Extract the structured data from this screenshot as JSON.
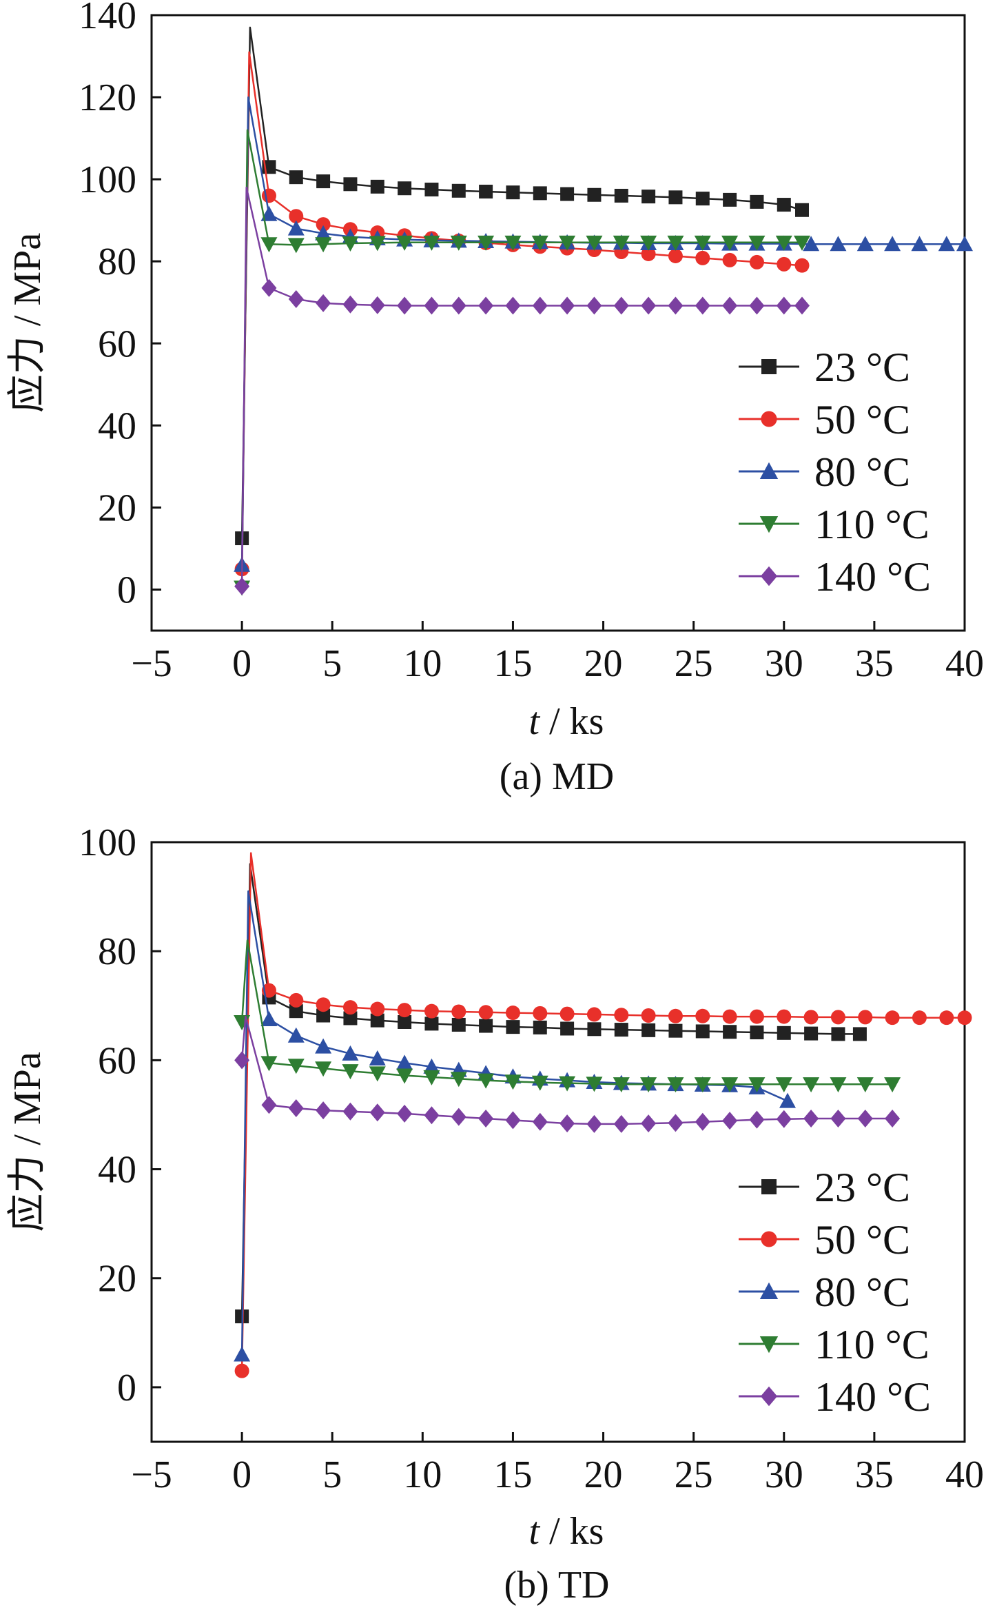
{
  "chart_data": [
    {
      "type": "line",
      "caption": "(a)  MD",
      "xlabel_italic": "t",
      "xlabel_rest": " / ks",
      "ylabel": "应力 / MPa",
      "xlim": [
        -5,
        40
      ],
      "ylim": [
        -10,
        140
      ],
      "xticks": [
        -5,
        0,
        5,
        10,
        15,
        20,
        25,
        30,
        35,
        40
      ],
      "yticks": [
        0,
        20,
        40,
        60,
        80,
        100,
        120,
        140
      ],
      "legend_position": "lower-right",
      "grid": false,
      "series": [
        {
          "name": "23 °C",
          "color": "#222222",
          "marker": "square",
          "peak": [
            0.45,
            137
          ],
          "x": [
            0,
            1.5,
            3,
            4.5,
            6,
            7.5,
            9,
            10.5,
            12,
            13.5,
            15,
            16.5,
            18,
            19.5,
            21,
            22.5,
            24,
            25.5,
            27,
            28.5,
            30,
            31
          ],
          "y": [
            12.5,
            103,
            100.5,
            99.5,
            98.8,
            98.2,
            97.8,
            97.5,
            97.2,
            97,
            96.8,
            96.6,
            96.4,
            96.2,
            96,
            95.8,
            95.6,
            95.3,
            95,
            94.5,
            93.8,
            92.5
          ]
        },
        {
          "name": "50 °C",
          "color": "#e8302a",
          "marker": "circle",
          "peak": [
            0.4,
            131
          ],
          "x": [
            0,
            1.5,
            3,
            4.5,
            6,
            7.5,
            9,
            10.5,
            12,
            13.5,
            15,
            16.5,
            18,
            19.5,
            21,
            22.5,
            24,
            25.5,
            27,
            28.5,
            30,
            31
          ],
          "y": [
            5,
            96,
            91,
            89,
            87.8,
            87,
            86.3,
            85.6,
            85,
            84.5,
            84,
            83.6,
            83.2,
            82.8,
            82.3,
            81.8,
            81.3,
            80.8,
            80.3,
            79.8,
            79.3,
            79
          ]
        },
        {
          "name": "80 °C",
          "color": "#2c4fa3",
          "marker": "triangle-up",
          "peak": [
            0.35,
            120
          ],
          "x": [
            0,
            1.5,
            3,
            4.5,
            6,
            7.5,
            9,
            10.5,
            12,
            13.5,
            15,
            16.5,
            18,
            19.5,
            21,
            22.5,
            24,
            25.5,
            27,
            28.5,
            30,
            31.5,
            33,
            34.5,
            36,
            37.5,
            39,
            40
          ],
          "y": [
            6,
            91.5,
            88,
            86.8,
            86,
            85.6,
            85.3,
            85.1,
            85,
            84.9,
            84.8,
            84.7,
            84.6,
            84.5,
            84.5,
            84.4,
            84.4,
            84.4,
            84.3,
            84.3,
            84.3,
            84.2,
            84.2,
            84.2,
            84.2,
            84.2,
            84.2,
            84.2
          ]
        },
        {
          "name": "110 °C",
          "color": "#2e7d32",
          "marker": "triangle-down",
          "peak": [
            0.3,
            112
          ],
          "x": [
            0,
            1.5,
            3,
            4.5,
            6,
            7.5,
            9,
            10.5,
            12,
            13.5,
            15,
            16.5,
            18,
            19.5,
            21,
            22.5,
            24,
            25.5,
            27,
            28.5,
            30,
            31
          ],
          "y": [
            0.5,
            84.2,
            84,
            84.2,
            84.4,
            84.5,
            84.6,
            84.6,
            84.6,
            84.6,
            84.6,
            84.6,
            84.6,
            84.6,
            84.6,
            84.6,
            84.6,
            84.6,
            84.6,
            84.6,
            84.6,
            84.6
          ]
        },
        {
          "name": "140 °C",
          "color": "#7b3fa0",
          "marker": "diamond",
          "peak": [
            0.25,
            98
          ],
          "x": [
            0,
            1.5,
            3,
            4.5,
            6,
            7.5,
            9,
            10.5,
            12,
            13.5,
            15,
            16.5,
            18,
            19.5,
            21,
            22.5,
            24,
            25.5,
            27,
            28.5,
            30,
            31
          ],
          "y": [
            0.8,
            73.5,
            70.8,
            69.8,
            69.5,
            69.3,
            69.2,
            69.2,
            69.2,
            69.2,
            69.2,
            69.2,
            69.2,
            69.2,
            69.2,
            69.2,
            69.2,
            69.2,
            69.2,
            69.2,
            69.2,
            69.2
          ]
        }
      ]
    },
    {
      "type": "line",
      "caption": "(b)  TD",
      "xlabel_italic": "t",
      "xlabel_rest": " / ks",
      "ylabel": "应力 / MPa",
      "xlim": [
        -5,
        40
      ],
      "ylim": [
        -10,
        100
      ],
      "xticks": [
        -5,
        0,
        5,
        10,
        15,
        20,
        25,
        30,
        35,
        40
      ],
      "yticks": [
        0,
        20,
        40,
        60,
        80,
        100
      ],
      "legend_position": "lower-right",
      "grid": false,
      "series": [
        {
          "name": "23 °C",
          "color": "#222222",
          "marker": "square",
          "peak": [
            0.45,
            96
          ],
          "x": [
            0,
            1.5,
            3,
            4.5,
            6,
            7.5,
            9,
            10.5,
            12,
            13.5,
            15,
            16.5,
            18,
            19.5,
            21,
            22.5,
            24,
            25.5,
            27,
            28.5,
            30,
            31.5,
            33,
            34.2
          ],
          "y": [
            13,
            71.5,
            69,
            68.2,
            67.7,
            67.3,
            67,
            66.7,
            66.5,
            66.3,
            66.1,
            66,
            65.8,
            65.7,
            65.6,
            65.5,
            65.4,
            65.3,
            65.2,
            65.1,
            65,
            64.9,
            64.8,
            64.8
          ]
        },
        {
          "name": "50 °C",
          "color": "#e8302a",
          "marker": "circle",
          "peak": [
            0.5,
            98
          ],
          "x": [
            0,
            1.5,
            3,
            4.5,
            6,
            7.5,
            9,
            10.5,
            12,
            13.5,
            15,
            16.5,
            18,
            19.5,
            21,
            22.5,
            24,
            25.5,
            27,
            28.5,
            30,
            31.5,
            33,
            34.5,
            36,
            37.5,
            39,
            40
          ],
          "y": [
            3,
            72.8,
            71,
            70.2,
            69.7,
            69.4,
            69.2,
            69,
            68.9,
            68.8,
            68.7,
            68.6,
            68.5,
            68.4,
            68.3,
            68.2,
            68.1,
            68.1,
            68,
            68,
            68,
            67.9,
            67.9,
            67.9,
            67.8,
            67.8,
            67.8,
            67.8
          ]
        },
        {
          "name": "80 °C",
          "color": "#2c4fa3",
          "marker": "triangle-up",
          "peak": [
            0.35,
            91
          ],
          "x": [
            0,
            1.5,
            3,
            4.5,
            6,
            7.5,
            9,
            10.5,
            12,
            13.5,
            15,
            16.5,
            18,
            19.5,
            21,
            22.5,
            24,
            25.5,
            27,
            28.5,
            30.2
          ],
          "y": [
            6,
            67.5,
            64.5,
            62.5,
            61.2,
            60.3,
            59.5,
            58.8,
            58.2,
            57.6,
            57,
            56.6,
            56.3,
            56,
            55.8,
            55.7,
            55.6,
            55.5,
            55.4,
            55,
            52.5
          ]
        },
        {
          "name": "110 °C",
          "color": "#2e7d32",
          "marker": "triangle-down",
          "peak": [
            0.3,
            82
          ],
          "x": [
            0,
            1.5,
            3,
            4.5,
            6,
            7.5,
            9,
            10.5,
            12,
            13.5,
            15,
            16.5,
            18,
            19.5,
            21,
            22.5,
            24,
            25.5,
            27,
            28.5,
            30,
            31.5,
            33,
            34.5,
            36
          ],
          "y": [
            67,
            59.5,
            59,
            58.5,
            58,
            57.6,
            57.2,
            56.9,
            56.6,
            56.3,
            56.1,
            55.9,
            55.8,
            55.7,
            55.6,
            55.6,
            55.6,
            55.6,
            55.6,
            55.6,
            55.6,
            55.6,
            55.6,
            55.6,
            55.6
          ]
        },
        {
          "name": "140 °C",
          "color": "#7b3fa0",
          "marker": "diamond",
          "peak": [
            0.2,
            68
          ],
          "x": [
            0,
            1.5,
            3,
            4.5,
            6,
            7.5,
            9,
            10.5,
            12,
            13.5,
            15,
            16.5,
            18,
            19.5,
            21,
            22.5,
            24,
            25.5,
            27,
            28.5,
            30,
            31.5,
            33,
            34.5,
            36
          ],
          "y": [
            60,
            51.8,
            51.2,
            50.8,
            50.6,
            50.4,
            50.2,
            49.9,
            49.6,
            49.3,
            49,
            48.7,
            48.4,
            48.3,
            48.3,
            48.4,
            48.5,
            48.7,
            48.9,
            49.1,
            49.2,
            49.3,
            49.3,
            49.3,
            49.3
          ]
        }
      ]
    }
  ]
}
